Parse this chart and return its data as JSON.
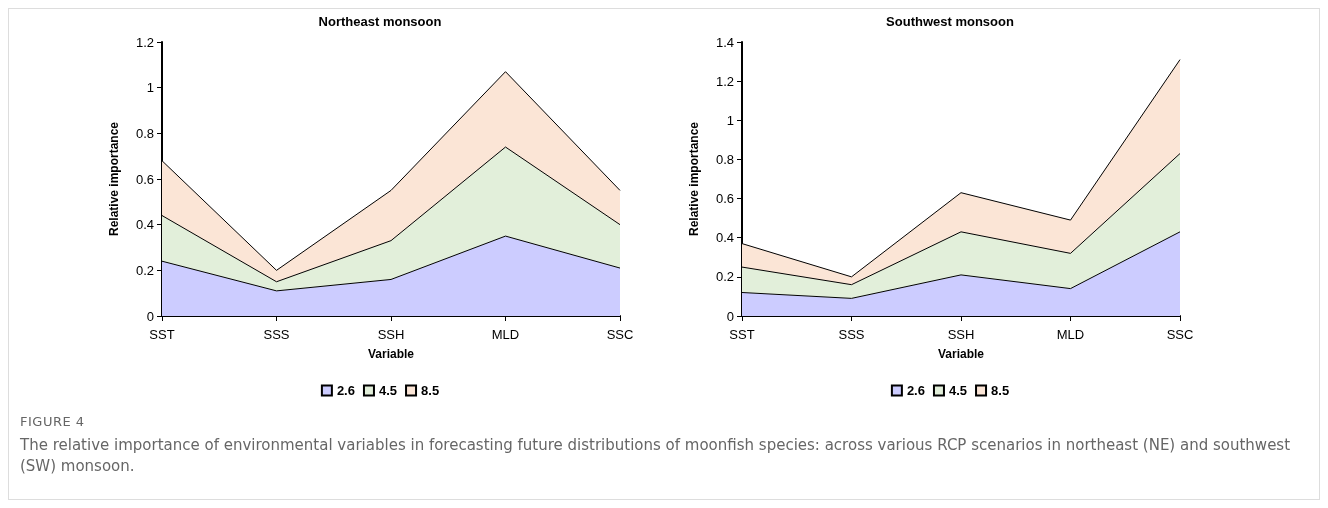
{
  "chart_data": [
    {
      "type": "area",
      "title": "Northeast monsoon",
      "xlabel": "Variable",
      "ylabel": "Relative importance",
      "categories": [
        "SST",
        "SSS",
        "SSH",
        "MLD",
        "SSC"
      ],
      "stacked": true,
      "ylim": [
        0,
        1.2
      ],
      "yticks": [
        0,
        0.2,
        0.4,
        0.6,
        0.8,
        1,
        1.2
      ],
      "grid": false,
      "legend": "bottom",
      "marker": "none",
      "series": [
        {
          "name": "2.6",
          "color": "#ccccff",
          "values": [
            0.24,
            0.11,
            0.16,
            0.35,
            0.21
          ]
        },
        {
          "name": "4.5",
          "color": "#e2efda",
          "values": [
            0.2,
            0.04,
            0.17,
            0.39,
            0.19
          ]
        },
        {
          "name": "8.5",
          "color": "#fbe5d6",
          "values": [
            0.24,
            0.05,
            0.22,
            0.33,
            0.15
          ]
        }
      ],
      "annotations": [
        "FIGURE 4",
        "The relative importance of environmental variables in forecasting future distributions of moonfish species: across various RCP scenarios in northeast (NE) and southwest (SW) monsoon."
      ]
    },
    {
      "type": "area",
      "title": "Southwest monsoon",
      "xlabel": "Variable",
      "ylabel": "Relative importance",
      "categories": [
        "SST",
        "SSS",
        "SSH",
        "MLD",
        "SSC"
      ],
      "stacked": true,
      "ylim": [
        0,
        1.4
      ],
      "yticks": [
        0,
        0.2,
        0.4,
        0.6,
        0.8,
        1,
        1.2,
        1.4
      ],
      "grid": false,
      "legend": "bottom",
      "marker": "none",
      "series": [
        {
          "name": "2.6",
          "color": "#ccccff",
          "values": [
            0.12,
            0.09,
            0.21,
            0.14,
            0.43
          ]
        },
        {
          "name": "4.5",
          "color": "#e2efda",
          "values": [
            0.13,
            0.07,
            0.22,
            0.18,
            0.4
          ]
        },
        {
          "name": "8.5",
          "color": "#fbe5d6",
          "values": [
            0.12,
            0.04,
            0.2,
            0.17,
            0.48
          ]
        }
      ]
    }
  ]
}
